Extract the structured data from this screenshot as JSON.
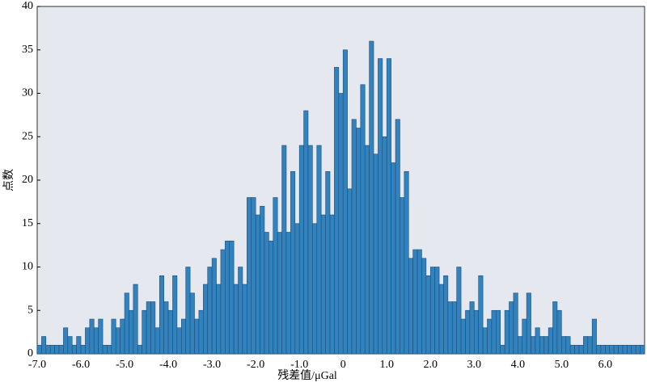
{
  "chart_data": {
    "type": "histogram",
    "xlabel": "残差值/μGal",
    "ylabel": "点数",
    "bins": [
      -7.0,
      -6.9,
      -6.8,
      -6.7,
      -6.6,
      -6.5,
      -6.4,
      -6.3,
      -6.2,
      -6.1,
      -6.0,
      -5.9,
      -5.8,
      -5.7,
      -5.6,
      -5.5,
      -5.4,
      -5.3,
      -5.2,
      -5.1,
      -5.0,
      -4.9,
      -4.8,
      -4.7,
      -4.6,
      -4.5,
      -4.4,
      -4.3,
      -4.2,
      -4.1,
      -4.0,
      -3.9,
      -3.8,
      -3.7,
      -3.6,
      -3.5,
      -3.4,
      -3.3,
      -3.2,
      -3.1,
      -3.0,
      -2.9,
      -2.8,
      -2.7,
      -2.6,
      -2.5,
      -2.4,
      -2.3,
      -2.2,
      -2.1,
      -2.0,
      -1.9,
      -1.8,
      -1.7,
      -1.6,
      -1.5,
      -1.4,
      -1.3,
      -1.2,
      -1.1,
      -1.0,
      -0.9,
      -0.8,
      -0.7,
      -0.6,
      -0.5,
      -0.4,
      -0.3,
      -0.2,
      -0.1,
      0.0,
      0.1,
      0.2,
      0.3,
      0.4,
      0.5,
      0.6,
      0.7,
      0.8,
      0.9,
      1.0,
      1.1,
      1.2,
      1.3,
      1.4,
      1.5,
      1.6,
      1.7,
      1.8,
      1.9,
      2.0,
      2.1,
      2.2,
      2.3,
      2.4,
      2.5,
      2.6,
      2.7,
      2.8,
      2.9,
      3.0,
      3.1,
      3.2,
      3.3,
      3.4,
      3.5,
      3.6,
      3.7,
      3.8,
      3.9,
      4.0,
      4.1,
      4.2,
      4.3,
      4.4,
      4.5,
      4.6,
      4.7,
      4.8,
      4.9,
      5.0,
      5.1,
      5.2,
      5.3,
      5.4,
      5.5,
      5.6,
      5.7,
      5.8,
      5.9,
      6.0,
      6.1,
      6.2,
      6.3,
      6.4,
      6.5,
      6.6,
      6.7,
      6.8,
      6.9
    ],
    "values": [
      1,
      2,
      1,
      1,
      1,
      1,
      3,
      2,
      1,
      2,
      1,
      3,
      4,
      3,
      4,
      1,
      1,
      4,
      3,
      4,
      7,
      5,
      8,
      1,
      5,
      6,
      6,
      3,
      9,
      6,
      5,
      9,
      3,
      4,
      10,
      7,
      4,
      5,
      8,
      10,
      11,
      8,
      12,
      13,
      13,
      8,
      10,
      8,
      18,
      18,
      16,
      17,
      14,
      13,
      18,
      14,
      24,
      14,
      21,
      15,
      24,
      28,
      24,
      15,
      24,
      16,
      21,
      16,
      33,
      30,
      35,
      19,
      27,
      26,
      31,
      24,
      36,
      23,
      34,
      25,
      34,
      22,
      27,
      18,
      21,
      11,
      12,
      12,
      11,
      9,
      10,
      10,
      8,
      9,
      6,
      6,
      10,
      4,
      5,
      6,
      5,
      9,
      3,
      4,
      5,
      5,
      1,
      5,
      6,
      7,
      2,
      4,
      7,
      2,
      3,
      2,
      2,
      3,
      6,
      5,
      2,
      2,
      1,
      1,
      1,
      2,
      2,
      4,
      1,
      1,
      1,
      1,
      1,
      1,
      1,
      1,
      1,
      1,
      1
    ],
    "color": "#3182bd",
    "edgecolor": "#1f4e79",
    "background": "#e5e9ef",
    "xlim": [
      -7.0,
      6.9
    ],
    "ylim": [
      0,
      40
    ],
    "xticks": [
      {
        "value": -7,
        "label": "-7.0"
      },
      {
        "value": -6,
        "label": "-6.0"
      },
      {
        "value": -5,
        "label": "-5.0"
      },
      {
        "value": -4,
        "label": "-4.0"
      },
      {
        "value": -3,
        "label": "-3.0"
      },
      {
        "value": -2,
        "label": "-2.0"
      },
      {
        "value": -1,
        "label": "-1.0"
      },
      0,
      {
        "value": 1,
        "label": "1.0"
      },
      {
        "value": 2,
        "label": "2.0"
      },
      {
        "value": 3,
        "label": "3.0"
      },
      {
        "value": 4,
        "label": "4.0"
      },
      {
        "value": 5,
        "label": "5.0"
      },
      {
        "value": 6,
        "label": "6.0"
      }
    ],
    "yticks": [
      0,
      5,
      10,
      15,
      20,
      25,
      30,
      35,
      40
    ]
  }
}
